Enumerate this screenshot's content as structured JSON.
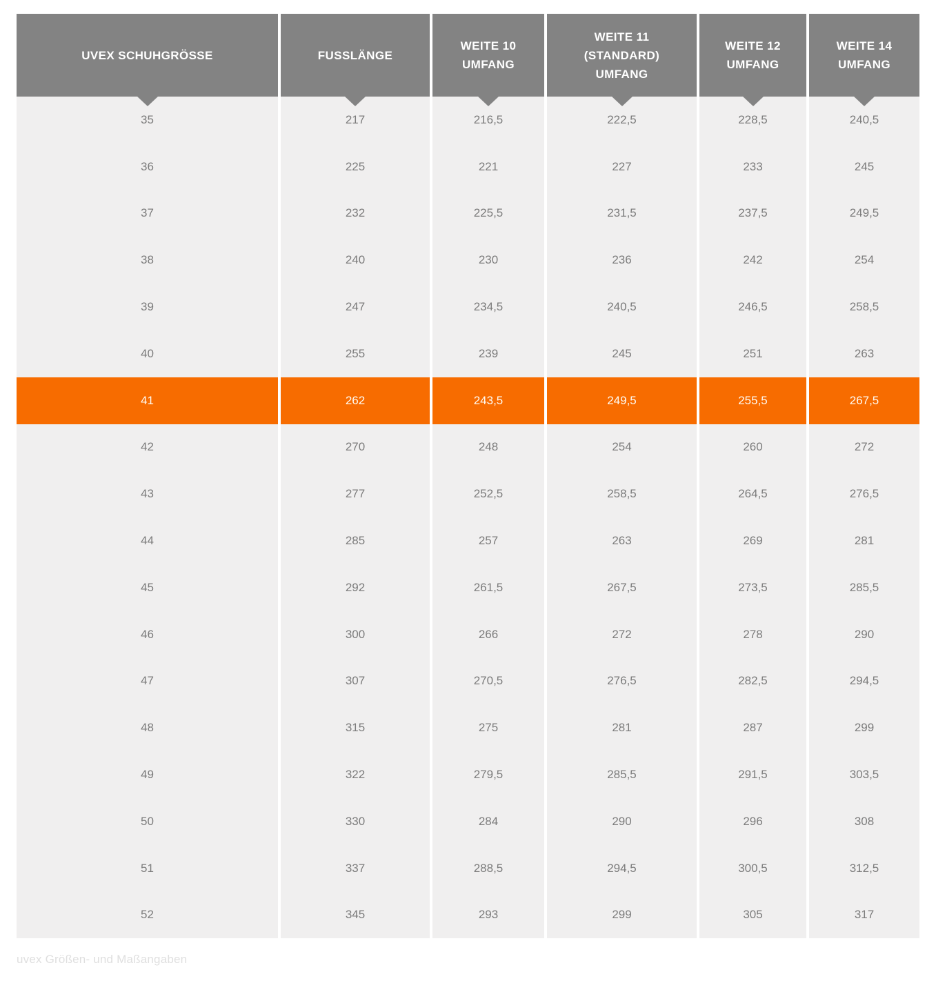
{
  "colors": {
    "header_bg": "#838383",
    "header_text": "#ffffff",
    "row_bg": "#f0efef",
    "cell_text": "#7b7b7b",
    "highlight_bg": "#f76c00",
    "highlight_text": "#fffaf2",
    "caption_text": "#dfdfdf",
    "page_bg": "#ffffff"
  },
  "table": {
    "columns": [
      {
        "id": "uvex-schuhgroesse",
        "lines": [
          "UVEX SCHUHGRÖSSE"
        ]
      },
      {
        "id": "fusslaenge",
        "lines": [
          "FUSSLÄNGE"
        ]
      },
      {
        "id": "weite-10-umfang",
        "lines": [
          "WEITE 10",
          "UMFANG"
        ]
      },
      {
        "id": "weite-11-standard-umfang",
        "lines": [
          "WEITE 11",
          "(STANDARD)",
          "UMFANG"
        ]
      },
      {
        "id": "weite-12-umfang",
        "lines": [
          "WEITE 12",
          "UMFANG"
        ]
      },
      {
        "id": "weite-14-umfang",
        "lines": [
          "WEITE 14",
          "UMFANG"
        ]
      }
    ],
    "rows": [
      {
        "highlighted": false,
        "cells": [
          "35",
          "217",
          "216,5",
          "222,5",
          "228,5",
          "240,5"
        ]
      },
      {
        "highlighted": false,
        "cells": [
          "36",
          "225",
          "221",
          "227",
          "233",
          "245"
        ]
      },
      {
        "highlighted": false,
        "cells": [
          "37",
          "232",
          "225,5",
          "231,5",
          "237,5",
          "249,5"
        ]
      },
      {
        "highlighted": false,
        "cells": [
          "38",
          "240",
          "230",
          "236",
          "242",
          "254"
        ]
      },
      {
        "highlighted": false,
        "cells": [
          "39",
          "247",
          "234,5",
          "240,5",
          "246,5",
          "258,5"
        ]
      },
      {
        "highlighted": false,
        "cells": [
          "40",
          "255",
          "239",
          "245",
          "251",
          "263"
        ]
      },
      {
        "highlighted": true,
        "cells": [
          "41",
          "262",
          "243,5",
          "249,5",
          "255,5",
          "267,5"
        ]
      },
      {
        "highlighted": false,
        "cells": [
          "42",
          "270",
          "248",
          "254",
          "260",
          "272"
        ]
      },
      {
        "highlighted": false,
        "cells": [
          "43",
          "277",
          "252,5",
          "258,5",
          "264,5",
          "276,5"
        ]
      },
      {
        "highlighted": false,
        "cells": [
          "44",
          "285",
          "257",
          "263",
          "269",
          "281"
        ]
      },
      {
        "highlighted": false,
        "cells": [
          "45",
          "292",
          "261,5",
          "267,5",
          "273,5",
          "285,5"
        ]
      },
      {
        "highlighted": false,
        "cells": [
          "46",
          "300",
          "266",
          "272",
          "278",
          "290"
        ]
      },
      {
        "highlighted": false,
        "cells": [
          "47",
          "307",
          "270,5",
          "276,5",
          "282,5",
          "294,5"
        ]
      },
      {
        "highlighted": false,
        "cells": [
          "48",
          "315",
          "275",
          "281",
          "287",
          "299"
        ]
      },
      {
        "highlighted": false,
        "cells": [
          "49",
          "322",
          "279,5",
          "285,5",
          "291,5",
          "303,5"
        ]
      },
      {
        "highlighted": false,
        "cells": [
          "50",
          "330",
          "284",
          "290",
          "296",
          "308"
        ]
      },
      {
        "highlighted": false,
        "cells": [
          "51",
          "337",
          "288,5",
          "294,5",
          "300,5",
          "312,5"
        ]
      },
      {
        "highlighted": false,
        "cells": [
          "52",
          "345",
          "293",
          "299",
          "305",
          "317"
        ]
      }
    ]
  },
  "caption": "uvex Größen- und Maßangaben"
}
